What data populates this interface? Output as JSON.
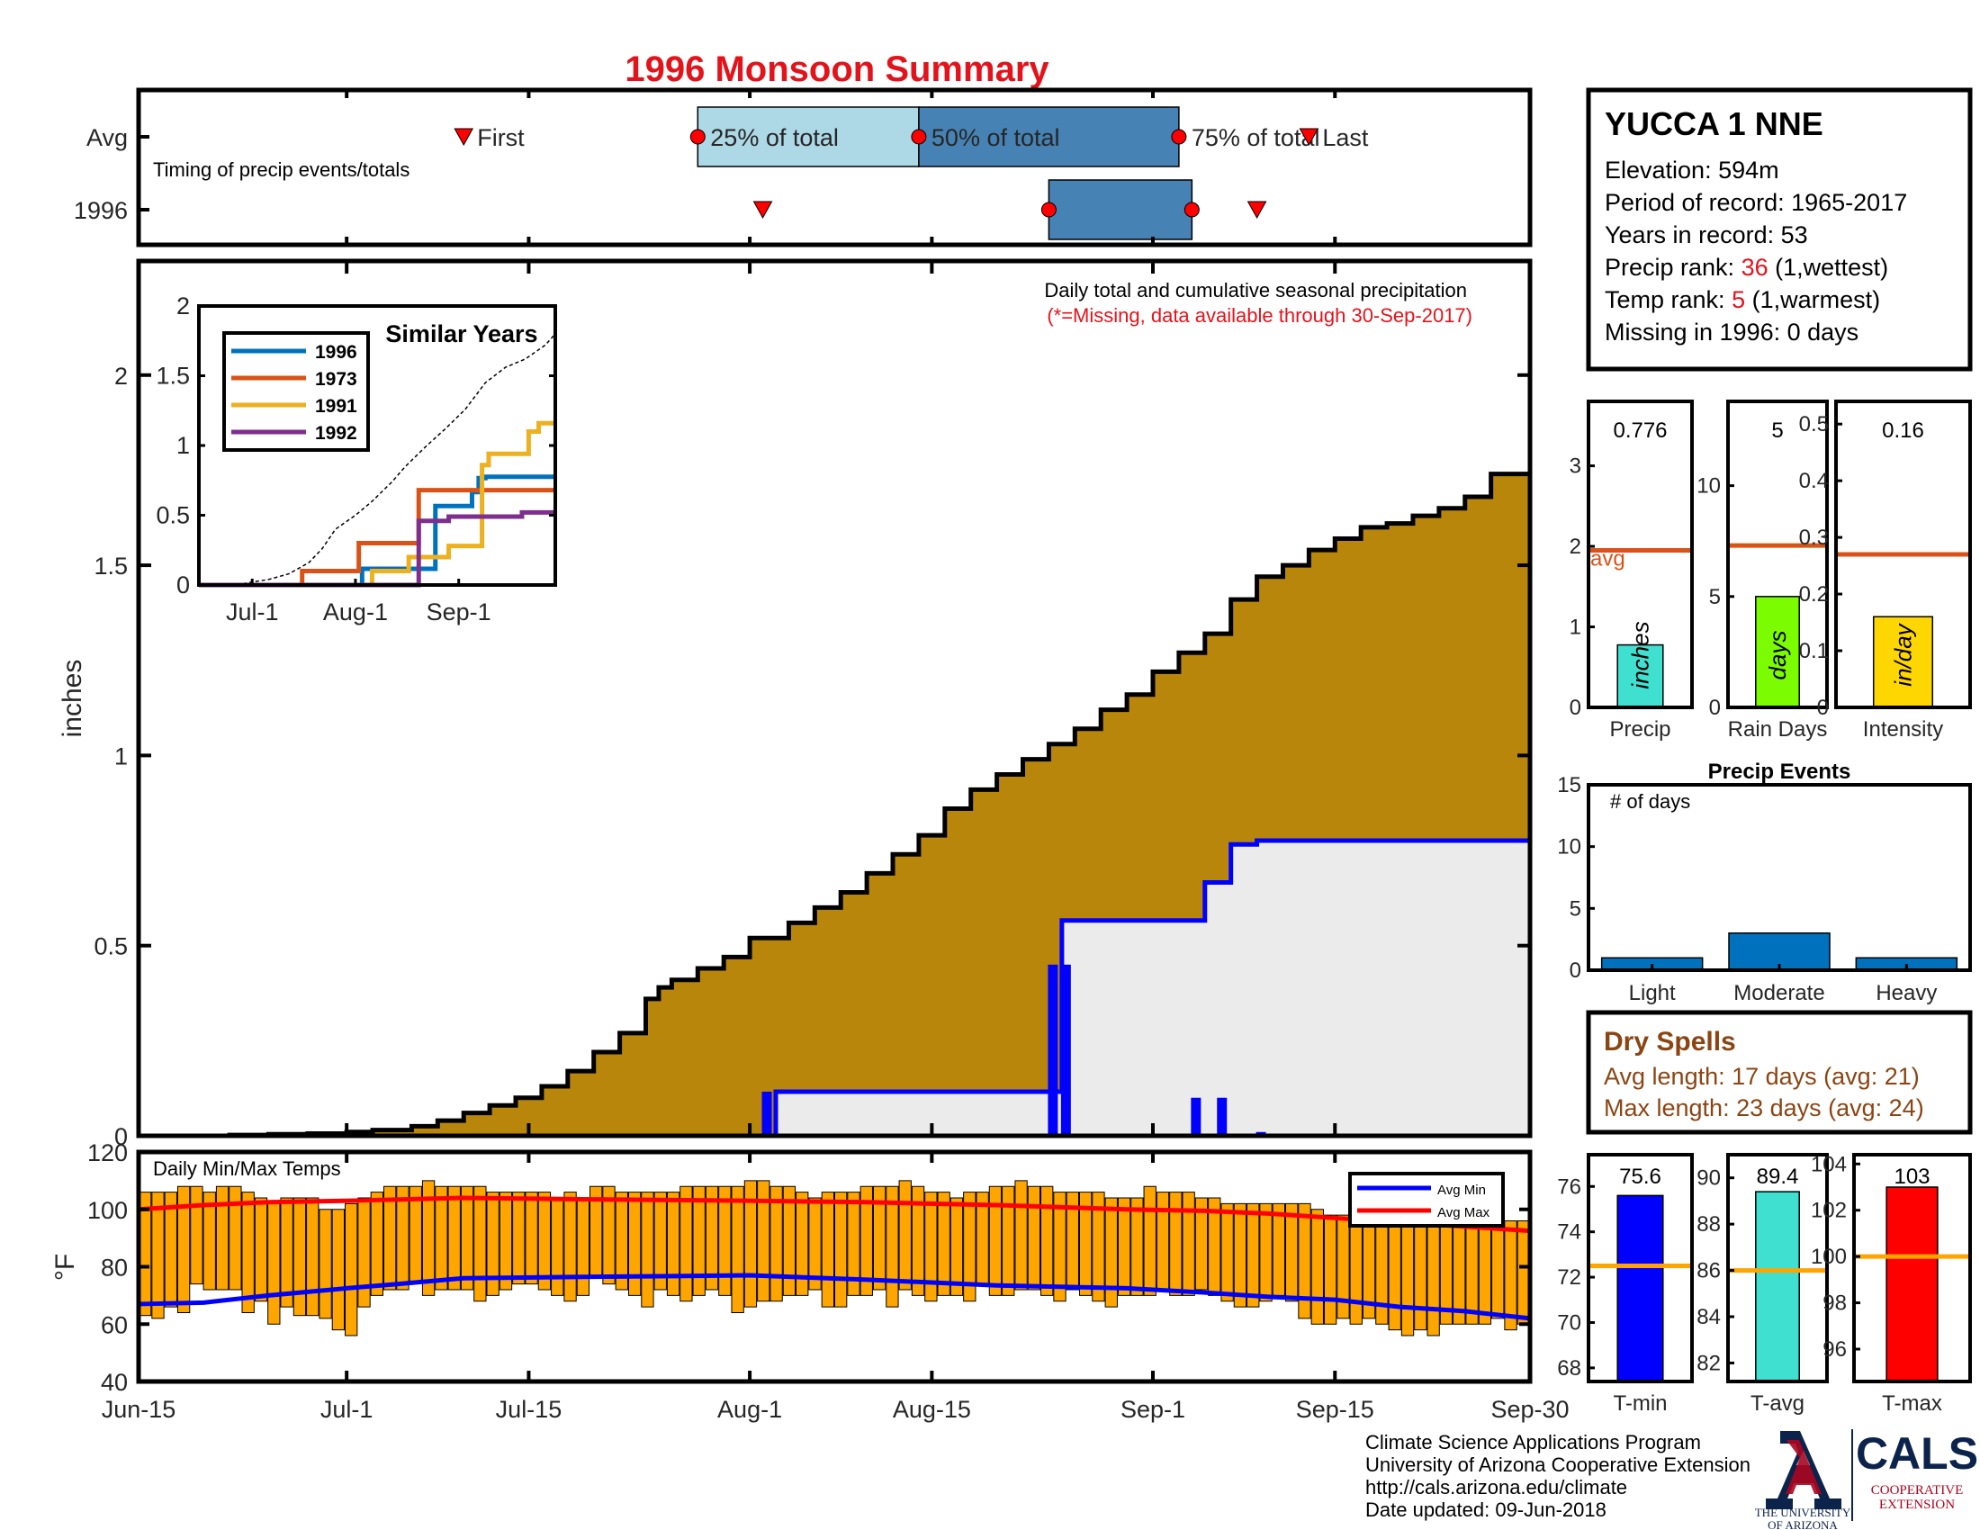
{
  "title": "1996 Monsoon Summary",
  "colors": {
    "title": "#e3131b",
    "cumulative_fill": "#b8860b",
    "avg_cumulative_fill": "#ebebeb",
    "avg_cumulative_line": "#0000ff",
    "daily_bars": "#0000ff",
    "temp_bars": "#ffa500",
    "avg_min_line": "#0000ff",
    "avg_max_line": "#ff0000",
    "light_blue": "#add8e6",
    "steel_blue": "#4682b4",
    "event_marker": "#ff0000",
    "hist_bar": "#0072bd",
    "avg_line": "#d95319",
    "temp_avg_line": "#ffa500",
    "precip_bar": "#40e0d0",
    "raindays_bar": "#7cfc00",
    "intensity_bar": "#ffd700",
    "tmin_bar": "#0000ff",
    "tavg_bar": "#40e0d0",
    "tmax_bar": "#ff0000",
    "dry_spells_text": "#8b4513"
  },
  "chart_data": [
    {
      "id": "timing",
      "type": "bar",
      "description_labels": {
        "avg": "Avg",
        "year": "1996",
        "note": "Timing of precip events/totals"
      },
      "legend": {
        "first": "First",
        "p25": "25% of total",
        "p50": "50% of total",
        "p75": "75% of total",
        "last": "Last"
      },
      "avg": {
        "first": "07-10",
        "p25": "07-28",
        "p50": "08-14",
        "p75": "09-03",
        "last": "09-13"
      },
      "year": {
        "first": "08-02",
        "p25": "08-24",
        "p75": "09-04",
        "last": "09-09"
      }
    },
    {
      "id": "precip_main",
      "type": "area",
      "ylabel": "inches",
      "ylim": [
        0,
        2.3
      ],
      "yticks": [
        0,
        0.5,
        1,
        1.5,
        2
      ],
      "ytick_labels": [
        "0",
        "0.5",
        "1",
        "1.5",
        "2"
      ],
      "xlim": [
        "06-15",
        "09-30"
      ],
      "xticks": [
        "06-15",
        "07-01",
        "07-15",
        "08-01",
        "08-15",
        "09-01",
        "09-15",
        "09-30"
      ],
      "xtick_labels": [
        "Jun-15",
        "Jul-1",
        "Jul-15",
        "Aug-1",
        "Aug-15",
        "Sep-1",
        "Sep-15",
        "Sep-30"
      ],
      "note": "Daily total and cumulative seasonal precipitation",
      "missing_note": "(*=Missing, data available through 30-Sep-2017)",
      "avg_cumulative": {
        "x": [
          "06-15",
          "06-22",
          "06-25",
          "06-28",
          "07-01",
          "07-03",
          "07-06",
          "07-08",
          "07-10",
          "07-12",
          "07-14",
          "07-16",
          "07-18",
          "07-20",
          "07-22",
          "07-24",
          "07-25",
          "07-26",
          "07-28",
          "07-30",
          "08-01",
          "08-04",
          "08-06",
          "08-08",
          "08-10",
          "08-12",
          "08-14",
          "08-16",
          "08-18",
          "08-20",
          "08-22",
          "08-24",
          "08-26",
          "08-28",
          "08-30",
          "09-01",
          "09-03",
          "09-05",
          "09-07",
          "09-09",
          "09-11",
          "09-13",
          "09-15",
          "09-17",
          "09-19",
          "09-21",
          "09-23",
          "09-25",
          "09-27",
          "09-30"
        ],
        "y": [
          0,
          0.002,
          0.004,
          0.006,
          0.01,
          0.015,
          0.025,
          0.04,
          0.06,
          0.08,
          0.1,
          0.13,
          0.17,
          0.22,
          0.27,
          0.36,
          0.39,
          0.41,
          0.44,
          0.47,
          0.52,
          0.56,
          0.6,
          0.64,
          0.69,
          0.74,
          0.79,
          0.86,
          0.91,
          0.95,
          0.99,
          1.03,
          1.07,
          1.12,
          1.16,
          1.22,
          1.27,
          1.32,
          1.41,
          1.47,
          1.5,
          1.54,
          1.57,
          1.6,
          1.61,
          1.63,
          1.65,
          1.68,
          1.74,
          1.8
        ]
      },
      "year_cumulative": {
        "x": [
          "06-15",
          "08-02",
          "08-03",
          "08-24",
          "08-25",
          "09-04",
          "09-05",
          "09-06",
          "09-07",
          "09-08",
          "09-09",
          "09-30"
        ],
        "y": [
          0,
          0,
          0.116,
          0.116,
          0.566,
          0.566,
          0.666,
          0.666,
          0.766,
          0.766,
          0.776,
          0.776
        ]
      },
      "year_daily": {
        "x": [
          "08-02",
          "08-24",
          "08-25",
          "09-04",
          "09-06",
          "09-09"
        ],
        "y": [
          0.116,
          0.45,
          0.45,
          0.1,
          0.1,
          0.01
        ]
      }
    },
    {
      "id": "similar_years",
      "type": "line",
      "title": "Similar Years",
      "ylim": [
        0,
        2
      ],
      "yticks": [
        0,
        0.5,
        1,
        1.5,
        2
      ],
      "ytick_labels": [
        "0",
        "0.5",
        "1",
        "1.5",
        "2"
      ],
      "xlim": [
        "06-15",
        "09-30"
      ],
      "xticks": [
        "07-01",
        "08-01",
        "09-01"
      ],
      "xtick_labels": [
        "Jul-1",
        "Aug-1",
        "Sep-1"
      ],
      "series": [
        {
          "name": "1996",
          "color": "#0072bd",
          "x": [
            "06-15",
            "08-02",
            "08-03",
            "08-24",
            "08-25",
            "09-04",
            "09-05",
            "09-06",
            "09-07",
            "09-08",
            "09-09",
            "09-30"
          ],
          "y": [
            0,
            0,
            0.116,
            0.116,
            0.566,
            0.566,
            0.666,
            0.666,
            0.766,
            0.766,
            0.776,
            0.776
          ]
        },
        {
          "name": "1973",
          "color": "#d95319",
          "x": [
            "06-15",
            "07-15",
            "07-16",
            "08-01",
            "08-02",
            "08-19",
            "08-20",
            "09-30"
          ],
          "y": [
            0,
            0,
            0.1,
            0.1,
            0.3,
            0.3,
            0.68,
            0.68
          ]
        },
        {
          "name": "1991",
          "color": "#edb120",
          "x": [
            "06-15",
            "08-05",
            "08-06",
            "08-16",
            "08-17",
            "08-28",
            "08-29",
            "09-07",
            "09-08",
            "09-09",
            "09-10",
            "09-21",
            "09-22",
            "09-24",
            "09-25",
            "09-30"
          ],
          "y": [
            0,
            0,
            0.1,
            0.1,
            0.2,
            0.2,
            0.28,
            0.28,
            0.86,
            0.86,
            0.94,
            0.94,
            1.1,
            1.1,
            1.16,
            1.16
          ]
        },
        {
          "name": "1992",
          "color": "#7e2f8e",
          "x": [
            "06-15",
            "08-19",
            "08-20",
            "08-28",
            "08-29",
            "09-19",
            "09-20",
            "09-30"
          ],
          "y": [
            0,
            0,
            0.46,
            0.46,
            0.49,
            0.49,
            0.52,
            0.52
          ]
        }
      ],
      "avg_series": {
        "x": [
          "06-15",
          "06-28",
          "07-06",
          "07-12",
          "07-18",
          "07-22",
          "07-26",
          "08-01",
          "08-06",
          "08-12",
          "08-16",
          "08-22",
          "08-28",
          "09-03",
          "09-09",
          "09-15",
          "09-21",
          "09-27",
          "09-30"
        ],
        "y": [
          0,
          0.01,
          0.04,
          0.08,
          0.16,
          0.26,
          0.4,
          0.5,
          0.6,
          0.74,
          0.85,
          0.99,
          1.12,
          1.26,
          1.45,
          1.56,
          1.62,
          1.72,
          1.8
        ]
      }
    },
    {
      "id": "temps",
      "type": "bar",
      "title": "Daily Min/Max Temps",
      "ylabel": "°F",
      "ylim": [
        40,
        120
      ],
      "yticks": [
        40,
        60,
        80,
        100,
        120
      ],
      "ytick_labels": [
        "40",
        "60",
        "80",
        "100",
        "120"
      ],
      "xlim": [
        "06-15",
        "09-30"
      ],
      "xticks": [
        "06-15",
        "07-01",
        "07-15",
        "08-01",
        "08-15",
        "09-01",
        "09-15",
        "09-30"
      ],
      "xtick_labels": [
        "Jun-15",
        "Jul-1",
        "Jul-15",
        "Aug-1",
        "Aug-15",
        "Sep-1",
        "Sep-15",
        "Sep-30"
      ],
      "legend": [
        "Avg Min",
        "Avg Max"
      ],
      "daily_min": [
        63,
        62,
        66,
        64,
        74,
        72,
        72,
        72,
        64,
        68,
        60,
        66,
        63,
        63,
        62,
        58,
        56,
        66,
        70,
        72,
        72,
        75,
        70,
        72,
        72,
        72,
        68,
        70,
        72,
        74,
        74,
        72,
        70,
        68,
        70,
        76,
        74,
        72,
        70,
        66,
        72,
        70,
        68,
        70,
        72,
        70,
        64,
        66,
        68,
        68,
        70,
        70,
        72,
        66,
        66,
        70,
        70,
        72,
        66,
        72,
        70,
        68,
        70,
        70,
        68,
        74,
        70,
        70,
        72,
        72,
        70,
        68,
        72,
        70,
        68,
        66,
        70,
        70,
        70,
        72,
        70,
        70,
        72,
        70,
        68,
        66,
        66,
        68,
        70,
        68,
        62,
        60,
        60,
        62,
        60,
        62,
        60,
        58,
        56,
        58,
        56,
        60,
        60,
        60,
        60,
        62,
        58,
        60
      ],
      "daily_max": [
        106,
        106,
        106,
        108,
        108,
        106,
        108,
        108,
        106,
        104,
        102,
        104,
        104,
        104,
        100,
        100,
        102,
        104,
        106,
        108,
        108,
        108,
        110,
        108,
        108,
        108,
        108,
        106,
        106,
        106,
        106,
        106,
        104,
        106,
        104,
        108,
        108,
        106,
        106,
        106,
        106,
        106,
        108,
        108,
        108,
        108,
        108,
        110,
        110,
        108,
        108,
        106,
        104,
        106,
        106,
        106,
        108,
        108,
        108,
        110,
        108,
        106,
        106,
        104,
        106,
        106,
        108,
        108,
        110,
        108,
        108,
        106,
        106,
        106,
        106,
        104,
        104,
        104,
        108,
        106,
        106,
        106,
        104,
        104,
        102,
        102,
        102,
        102,
        102,
        102,
        102,
        100,
        98,
        98,
        98,
        96,
        96,
        96,
        96,
        94,
        94,
        96,
        94,
        94,
        94,
        94,
        96,
        96
      ],
      "avg_min": {
        "x": [
          "06-15",
          "06-20",
          "06-25",
          "07-01",
          "07-05",
          "07-10",
          "07-20",
          "08-01",
          "08-10",
          "08-20",
          "08-30",
          "09-05",
          "09-10",
          "09-15",
          "09-20",
          "09-25",
          "09-30"
        ],
        "y": [
          67,
          67.5,
          70,
          72.5,
          74,
          76,
          76.5,
          77,
          75.5,
          73.5,
          72.5,
          71,
          69.5,
          68.5,
          66,
          64.5,
          62
        ]
      },
      "avg_max": {
        "x": [
          "06-15",
          "06-20",
          "06-25",
          "07-01",
          "07-10",
          "07-20",
          "08-01",
          "08-10",
          "08-20",
          "08-30",
          "09-05",
          "09-10",
          "09-15",
          "09-20",
          "09-25",
          "09-30"
        ],
        "y": [
          100,
          101.5,
          102.5,
          103,
          104,
          103.5,
          103,
          102.5,
          101.5,
          100,
          99.5,
          98.5,
          97,
          95.5,
          94,
          92.5
        ]
      }
    },
    {
      "id": "precip_stats",
      "type": "bar",
      "panels": [
        {
          "category": "Precip",
          "value": 0.776,
          "value_label": "0.776",
          "unit": "inches",
          "avg": 1.95,
          "avg_label": "avg",
          "ylim": [
            0,
            3.8
          ],
          "yticks": [
            0,
            1,
            2,
            3
          ],
          "ytick_labels": [
            "0",
            "1",
            "2",
            "3"
          ]
        },
        {
          "category": "Rain Days",
          "value": 5,
          "value_label": "5",
          "unit": "days",
          "avg": 7.3,
          "ylim": [
            0,
            13.8
          ],
          "yticks": [
            0,
            5,
            10
          ],
          "ytick_labels": [
            "0",
            "5",
            "10"
          ]
        },
        {
          "category": "Intensity",
          "value": 0.16,
          "value_label": "0.16",
          "unit": "in/day",
          "avg": 0.27,
          "ylim": [
            0,
            0.54
          ],
          "yticks": [
            0,
            0.1,
            0.2,
            0.3,
            0.4,
            0.5
          ],
          "ytick_labels": [
            "0",
            "0.1",
            "0.2",
            "0.3",
            "0.4",
            "0.5"
          ]
        }
      ]
    },
    {
      "id": "precip_events",
      "type": "bar",
      "title": "Precip Events",
      "note": "# of days",
      "categories": [
        "Light",
        "Moderate",
        "Heavy"
      ],
      "values": [
        1,
        3,
        1
      ],
      "ylim": [
        0,
        15
      ],
      "yticks": [
        0,
        5,
        10,
        15
      ],
      "ytick_labels": [
        "0",
        "5",
        "10",
        "15"
      ]
    },
    {
      "id": "temp_stats",
      "type": "bar",
      "panels": [
        {
          "category": "T-min",
          "value": 75.6,
          "value_label": "75.6",
          "avg": 72.5,
          "ylim": [
            67.4,
            77.4
          ],
          "yticks": [
            68,
            70,
            72,
            74,
            76
          ],
          "ytick_labels": [
            "68",
            "70",
            "72",
            "74",
            "76"
          ]
        },
        {
          "category": "T-avg",
          "value": 89.4,
          "value_label": "89.4",
          "avg": 86,
          "ylim": [
            81.2,
            91
          ],
          "yticks": [
            82,
            84,
            86,
            88,
            90
          ],
          "ytick_labels": [
            "82",
            "84",
            "86",
            "88",
            "90"
          ]
        },
        {
          "category": "T-max",
          "value": 103,
          "value_label": "103",
          "avg": 100,
          "ylim": [
            94.6,
            104.4
          ],
          "yticks": [
            96,
            98,
            100,
            102,
            104
          ],
          "ytick_labels": [
            "96",
            "98",
            "100",
            "102",
            "104"
          ]
        }
      ]
    }
  ],
  "station": {
    "name": "YUCCA 1 NNE",
    "elevation": "Elevation: 594m",
    "period": "Period of record: 1965-2017",
    "years": "Years in record: 53",
    "precip_rank_label": "Precip rank: ",
    "precip_rank": "36",
    "precip_rank_note": " (1,wettest)",
    "temp_rank_label": "Temp rank: ",
    "temp_rank": "5",
    "temp_rank_note": " (1,warmest)",
    "missing": "Missing in 1996: 0 days"
  },
  "dry_spells": {
    "title": "Dry Spells",
    "avg_length": "Avg length: 17 days (avg: 21)",
    "max_length": "Max length: 23 days (avg: 24)"
  },
  "footer": {
    "line1": "Climate Science Applications Program",
    "line2": "University of Arizona Cooperative Extension",
    "line3": "http://cals.arizona.edu/climate",
    "line4": " Date updated: 09-Jun-2018"
  },
  "logos": {
    "ua_text1": "THE UNIVERSITY",
    "ua_text2": "OF ARIZONA",
    "cals": "CALS",
    "coop1": "COOPERATIVE",
    "coop2": "EXTENSION"
  }
}
